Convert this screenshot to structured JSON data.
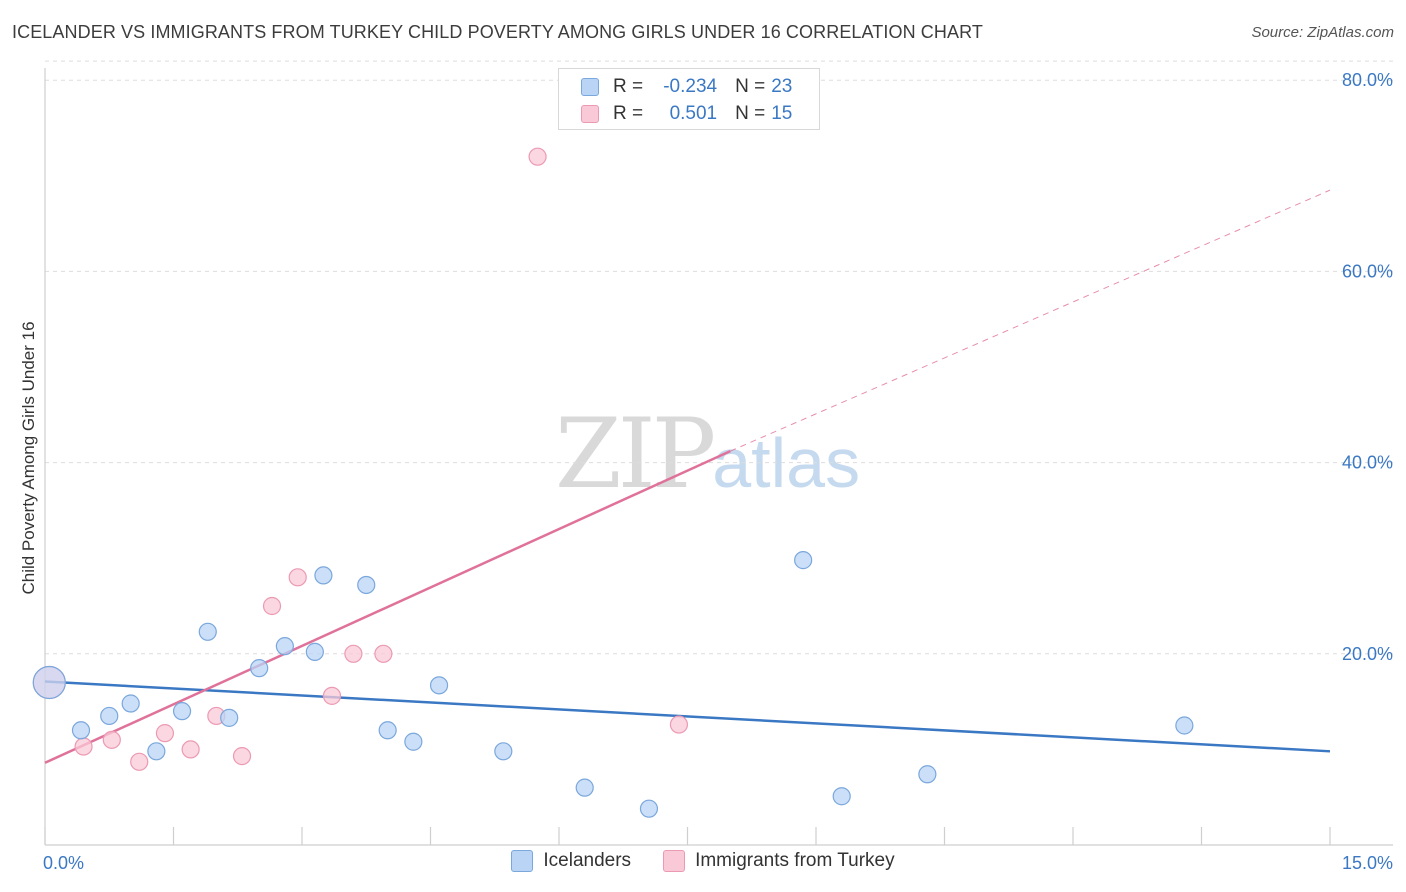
{
  "header": {
    "title": "ICELANDER VS IMMIGRANTS FROM TURKEY CHILD POVERTY AMONG GIRLS UNDER 16 CORRELATION CHART",
    "source": "Source: ZipAtlas.com"
  },
  "watermark": {
    "zip": "ZIP",
    "atlas": "atlas"
  },
  "legend": {
    "r_label": "R =",
    "n_label": "N =",
    "rows": [
      {
        "r": "-0.234",
        "n": "23"
      },
      {
        "r": "0.501",
        "n": "15"
      }
    ],
    "series_names": [
      "Icelanders",
      "Immigrants from Turkey"
    ]
  },
  "colors": {
    "blue_fill": "#b9d4f5",
    "blue_stroke": "#7aa7dc",
    "blue_line": "#3b78c4",
    "pink_fill": "#f9c9d7",
    "pink_stroke": "#ec9ab3",
    "pink_line": "#e0729a",
    "tick_text": "#3b78c4"
  },
  "chart_data": {
    "type": "scatter",
    "title": "ICELANDER VS IMMIGRANTS FROM TURKEY CHILD POVERTY AMONG GIRLS UNDER 16 CORRELATION CHART",
    "xlabel": "",
    "ylabel": "Child Poverty Among Girls Under 16",
    "xlim": [
      0,
      15
    ],
    "ylim": [
      0,
      82
    ],
    "x_tick_labels": [
      "0.0%",
      "15.0%"
    ],
    "y_ticks": [
      20,
      40,
      60,
      80
    ],
    "y_tick_labels": [
      "20.0%",
      "40.0%",
      "60.0%",
      "80.0%"
    ],
    "grid": true,
    "series": [
      {
        "name": "Icelanders",
        "r": -0.234,
        "n": 23,
        "points": [
          [
            0.05,
            17.0
          ],
          [
            0.42,
            12.0
          ],
          [
            0.75,
            13.5
          ],
          [
            1.0,
            14.8
          ],
          [
            1.3,
            9.8
          ],
          [
            1.6,
            14.0
          ],
          [
            1.9,
            22.3
          ],
          [
            2.15,
            13.3
          ],
          [
            2.5,
            18.5
          ],
          [
            2.8,
            20.8
          ],
          [
            3.15,
            20.2
          ],
          [
            3.25,
            28.2
          ],
          [
            3.75,
            27.2
          ],
          [
            4.0,
            12.0
          ],
          [
            4.3,
            10.8
          ],
          [
            4.6,
            16.7
          ],
          [
            5.35,
            9.8
          ],
          [
            6.3,
            6.0
          ],
          [
            7.05,
            3.8
          ],
          [
            8.85,
            29.8
          ],
          [
            9.3,
            5.1
          ],
          [
            10.3,
            7.4
          ],
          [
            13.3,
            12.5
          ]
        ],
        "trend": {
          "x": [
            0,
            15
          ],
          "y": [
            17.1,
            9.8
          ]
        }
      },
      {
        "name": "Immigrants from Turkey",
        "r": 0.501,
        "n": 15,
        "points": [
          [
            0.05,
            17.0
          ],
          [
            0.45,
            10.3
          ],
          [
            0.78,
            11.0
          ],
          [
            1.1,
            8.7
          ],
          [
            1.4,
            11.7
          ],
          [
            1.7,
            10.0
          ],
          [
            2.0,
            13.5
          ],
          [
            2.3,
            9.3
          ],
          [
            2.65,
            25.0
          ],
          [
            2.95,
            28.0
          ],
          [
            3.35,
            15.6
          ],
          [
            3.6,
            20.0
          ],
          [
            3.95,
            20.0
          ],
          [
            5.75,
            72.0
          ],
          [
            7.4,
            12.6
          ]
        ],
        "trend": {
          "x": [
            0,
            8.0
          ],
          "y": [
            8.6,
            41.2
          ],
          "dashed_to": {
            "x": 15,
            "y": 68.5
          }
        }
      }
    ]
  }
}
